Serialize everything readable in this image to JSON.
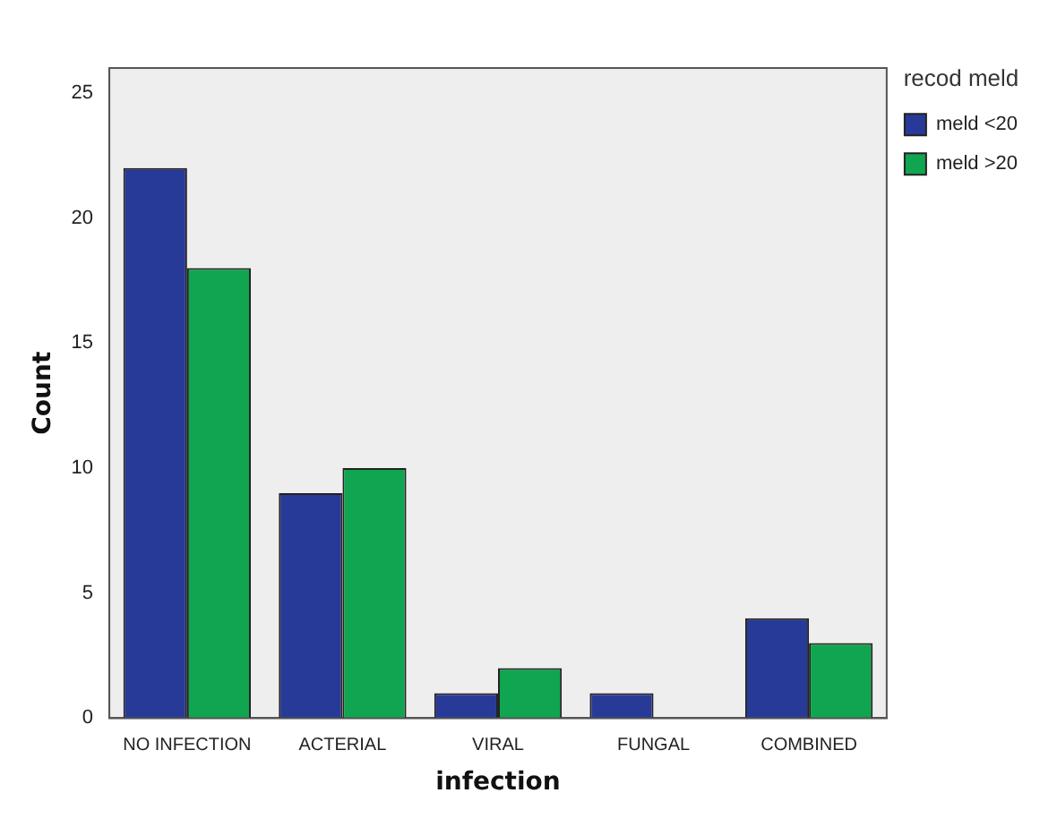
{
  "chart_data": {
    "type": "bar",
    "xlabel": "infection",
    "ylabel": "Count",
    "legend_title": "recod meld",
    "categories": [
      "NO INFECTION",
      "ACTERIAL",
      "VIRAL",
      "FUNGAL",
      "COMBINED"
    ],
    "series": [
      {
        "name": "meld <20",
        "color": "#283a97",
        "values": [
          22,
          9,
          1,
          1,
          4
        ]
      },
      {
        "name": "meld >20",
        "color": "#10a550",
        "values": [
          18,
          10,
          2,
          0,
          3
        ]
      }
    ],
    "ylim": [
      0,
      26
    ],
    "yticks": [
      0,
      5,
      10,
      15,
      20,
      25
    ],
    "grid": false,
    "legend": "right"
  }
}
